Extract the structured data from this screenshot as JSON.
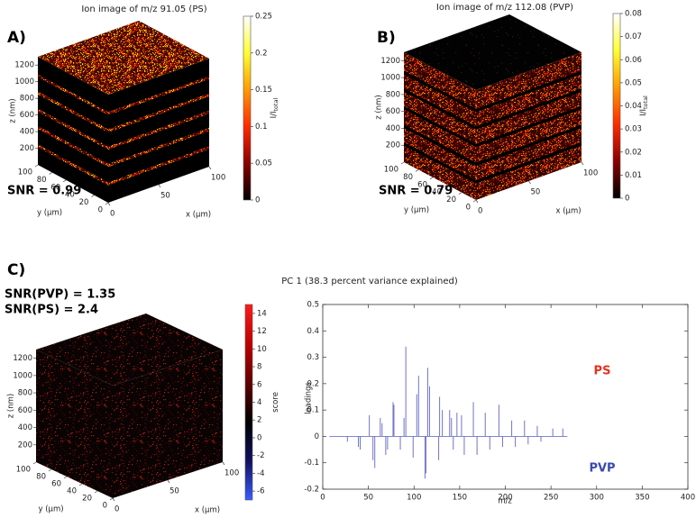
{
  "chart_data": [
    {
      "type": "cube",
      "panel_label": "A)",
      "title": "Ion image of m/z 91.05 (PS)",
      "annotations": [
        "SNR = 0.99"
      ],
      "xlabel": "x (µm)",
      "ylabel": "y (µm)",
      "zlabel": "z (nm)",
      "xlim": [
        0,
        100
      ],
      "xticks": [
        0,
        50,
        100
      ],
      "ylim": [
        0,
        100
      ],
      "yticks": [
        0,
        20,
        40,
        60,
        80,
        100
      ],
      "zlim": [
        0,
        1300
      ],
      "zticks": [
        200,
        400,
        600,
        800,
        1000,
        1200
      ],
      "colorbar_label": "I/I",
      "colorbar_label_sub": "total",
      "clim": [
        0,
        0.25
      ],
      "cticks": [
        0,
        0.05,
        0.1,
        0.15,
        0.2,
        0.25
      ],
      "colormap": [
        "#000000",
        "#8a0000",
        "#ff2a00",
        "#ff9a00",
        "#ffff30",
        "#ffffff"
      ]
    },
    {
      "type": "cube",
      "panel_label": "B)",
      "title": "Ion image of m/z 112.08 (PVP)",
      "annotations": [
        "SNR = 0.79"
      ],
      "xlabel": "x (µm)",
      "ylabel": "y (µm)",
      "zlabel": "z (nm)",
      "xlim": [
        0,
        100
      ],
      "xticks": [
        0,
        50,
        100
      ],
      "ylim": [
        0,
        100
      ],
      "yticks": [
        0,
        20,
        40,
        60,
        80,
        100
      ],
      "zlim": [
        0,
        1300
      ],
      "zticks": [
        200,
        400,
        600,
        800,
        1000,
        1200
      ],
      "colorbar_label": "I/I",
      "colorbar_label_sub": "total",
      "clim": [
        0,
        0.08
      ],
      "cticks": [
        0,
        0.01,
        0.02,
        0.03,
        0.04,
        0.05,
        0.06,
        0.07,
        0.08
      ],
      "colormap": [
        "#000000",
        "#8a0000",
        "#ff2a00",
        "#ff9a00",
        "#ffff30",
        "#ffffff"
      ]
    },
    {
      "type": "cube",
      "panel_label": "C)",
      "title": "PC 1 (38.3 percent variance explained)",
      "annotations": [
        "SNR(PVP) = 1.35",
        "SNR(PS) = 2.4"
      ],
      "xlabel": "x (µm)",
      "ylabel": "y (µm)",
      "zlabel": "z (nm)",
      "xlim": [
        0,
        100
      ],
      "xticks": [
        0,
        50,
        100
      ],
      "ylim": [
        0,
        100
      ],
      "yticks": [
        0,
        20,
        40,
        60,
        80,
        100
      ],
      "zlim": [
        0,
        1300
      ],
      "zticks": [
        200,
        400,
        600,
        800,
        1000,
        1200
      ],
      "colorbar_label": "score",
      "clim": [
        -7,
        15
      ],
      "cticks": [
        -6,
        -4,
        -2,
        0,
        2,
        4,
        6,
        8,
        10,
        12,
        14
      ],
      "colormap": [
        "#3a5cff",
        "#101060",
        "#000000",
        "#600000",
        "#c00000",
        "#ff1a1a"
      ]
    },
    {
      "type": "stem",
      "xlabel": "m/z",
      "ylabel": "loadings",
      "color": "#6f74c8",
      "xlim": [
        0,
        400
      ],
      "xticks": [
        0,
        50,
        100,
        150,
        200,
        250,
        300,
        350,
        400
      ],
      "ylim": [
        -0.2,
        0.5
      ],
      "yticks": [
        -0.2,
        -0.1,
        0,
        0.1,
        0.2,
        0.3,
        0.4,
        0.5
      ],
      "x": [
        27,
        39,
        41,
        51,
        55,
        57,
        63,
        65,
        69,
        71,
        77,
        78,
        85,
        89,
        91,
        99,
        103,
        105,
        112,
        113,
        115,
        117,
        127,
        128,
        131,
        139,
        141,
        143,
        147,
        152,
        155,
        165,
        169,
        178,
        183,
        193,
        197,
        207,
        211,
        221,
        225,
        235,
        239,
        252,
        263
      ],
      "values": [
        -0.02,
        -0.04,
        -0.05,
        0.08,
        -0.09,
        -0.12,
        0.07,
        0.05,
        -0.07,
        -0.05,
        0.13,
        0.12,
        -0.05,
        0.07,
        0.34,
        -0.08,
        0.16,
        0.23,
        -0.16,
        -0.14,
        0.26,
        0.19,
        -0.09,
        0.15,
        0.1,
        0.1,
        0.07,
        -0.05,
        0.09,
        0.08,
        -0.07,
        0.13,
        -0.07,
        0.09,
        -0.05,
        0.12,
        -0.04,
        0.06,
        -0.04,
        0.06,
        -0.03,
        0.04,
        -0.02,
        0.03,
        0.03
      ],
      "annotations": [
        {
          "text": "PS",
          "color": "#e8321e"
        },
        {
          "text": "PVP",
          "color": "#3a4bb0"
        }
      ]
    }
  ]
}
